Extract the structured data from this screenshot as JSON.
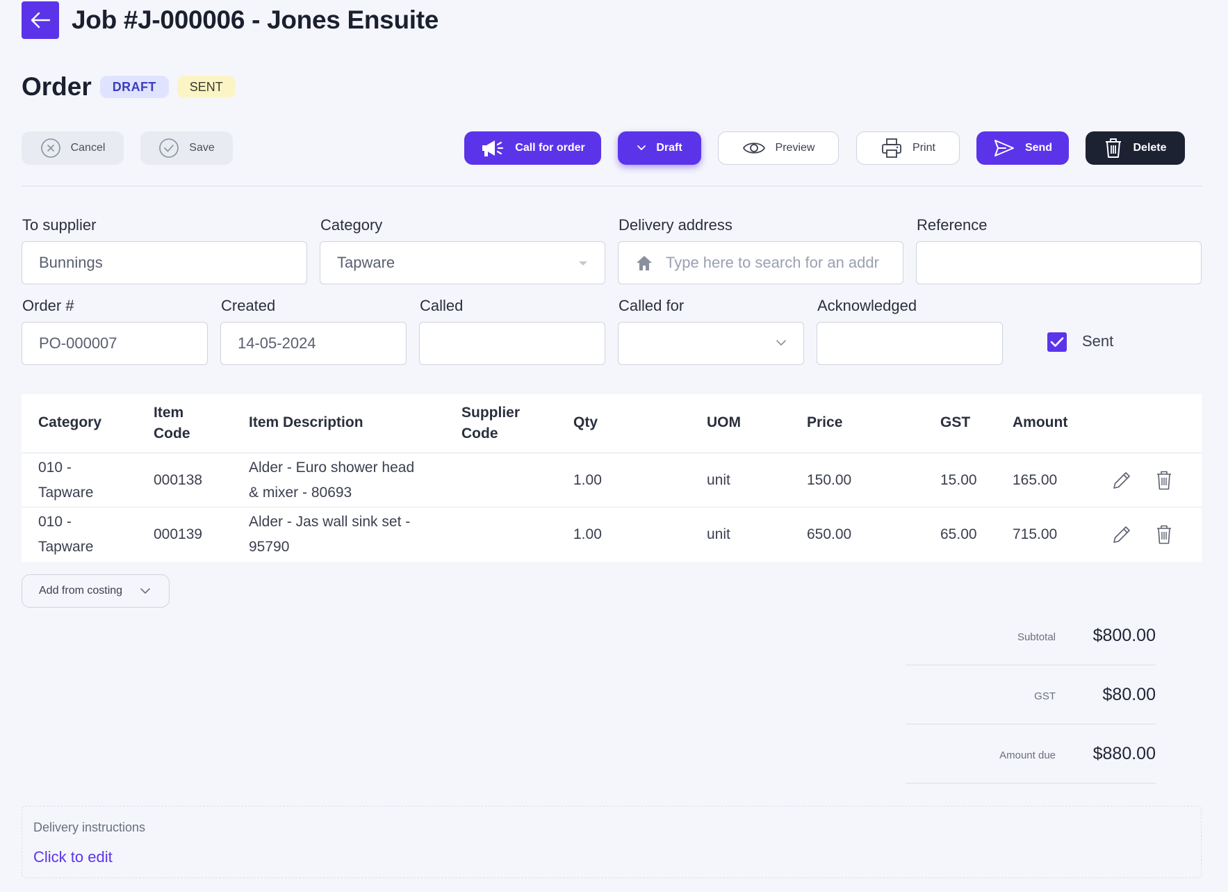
{
  "header": {
    "job_title": "Job #J-000006 - Jones Ensuite"
  },
  "order": {
    "title": "Order",
    "badges": [
      "DRAFT",
      "SENT"
    ]
  },
  "toolbar": {
    "cancel": "Cancel",
    "save": "Save",
    "call_for_order": "Call for order",
    "draft": "Draft",
    "preview": "Preview",
    "print": "Print",
    "send": "Send",
    "delete": "Delete"
  },
  "form": {
    "to_supplier": {
      "label": "To supplier",
      "value": "Bunnings"
    },
    "category": {
      "label": "Category",
      "value": "Tapware"
    },
    "delivery_address": {
      "label": "Delivery address",
      "placeholder": "Type here to search for an addr"
    },
    "reference": {
      "label": "Reference",
      "value": ""
    },
    "order_number": {
      "label": "Order #",
      "value": "PO-000007"
    },
    "created": {
      "label": "Created",
      "value": "14-05-2024"
    },
    "called": {
      "label": "Called",
      "value": ""
    },
    "called_for": {
      "label": "Called for",
      "value": ""
    },
    "acknowledged": {
      "label": "Acknowledged",
      "value": ""
    },
    "sent": {
      "label": "Sent",
      "checked": true
    }
  },
  "table": {
    "headers": {
      "category": "Category",
      "item_code_1": "Item",
      "item_code_2": "Code",
      "item_description": "Item Description",
      "supplier_code_1": "Supplier",
      "supplier_code_2": "Code",
      "qty": "Qty",
      "uom": "UOM",
      "price": "Price",
      "gst": "GST",
      "amount": "Amount"
    },
    "rows": [
      {
        "category_1": "010 -",
        "category_2": "Tapware",
        "item_code": "000138",
        "description_1": "Alder - Euro shower head",
        "description_2": "& mixer - 80693",
        "supplier_code": "",
        "qty": "1.00",
        "uom": "unit",
        "price": "150.00",
        "gst": "15.00",
        "amount": "165.00"
      },
      {
        "category_1": "010 -",
        "category_2": "Tapware",
        "item_code": "000139",
        "description_1": "Alder - Jas wall sink set -",
        "description_2": "95790",
        "supplier_code": "",
        "qty": "1.00",
        "uom": "unit",
        "price": "650.00",
        "gst": "65.00",
        "amount": "715.00"
      }
    ]
  },
  "add_from_costing": "Add from costing",
  "totals": {
    "subtotal_label": "Subtotal",
    "subtotal": "$800.00",
    "gst_label": "GST",
    "gst": "$80.00",
    "amount_due_label": "Amount due",
    "amount_due": "$880.00"
  },
  "delivery_instructions": {
    "label": "Delivery instructions",
    "edit": "Click to edit"
  },
  "colors": {
    "accent": "#5b34ea",
    "dark": "#1d2233",
    "draft_badge_bg": "#dfe3ff",
    "sent_badge_bg": "#fbf5c6",
    "background": "#f5f6fb"
  }
}
